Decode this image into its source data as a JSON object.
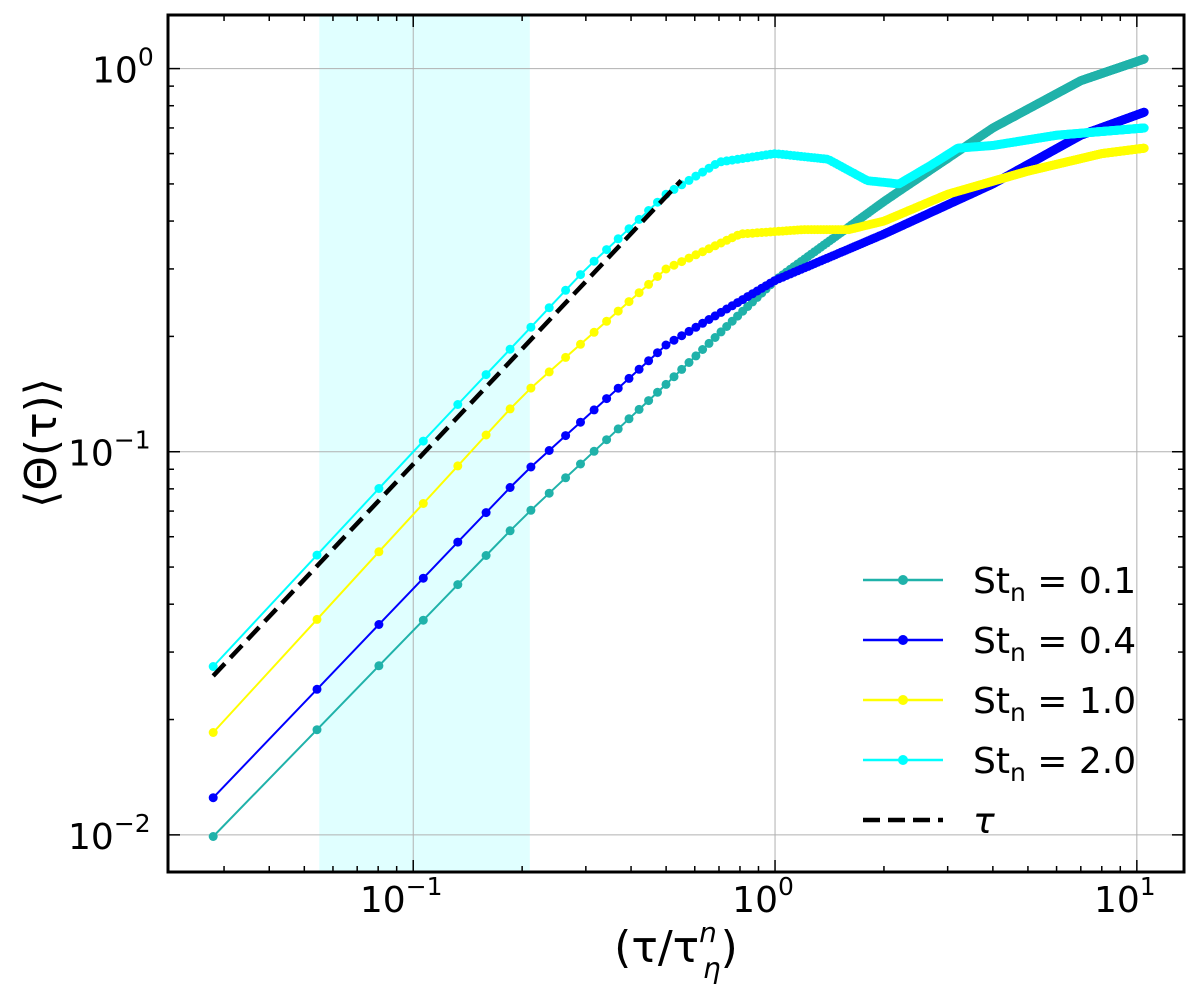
{
  "chart_data": {
    "type": "line",
    "xscale": "log",
    "yscale": "log",
    "xlim": [
      0.021,
      13.5
    ],
    "ylim": [
      0.008,
      1.38
    ],
    "grid": true,
    "xlabel": "(τ/τ",
    "xlabel_sup": "n",
    "xlabel_sub": "η",
    "xlabel_close": ")",
    "ylabel": "⟨Θ(τ)⟩",
    "x_major_ticks": [
      {
        "value": 0.1,
        "base": "10",
        "exp": "−1"
      },
      {
        "value": 1,
        "base": "10",
        "exp": "0"
      },
      {
        "value": 10,
        "base": "10",
        "exp": "1"
      }
    ],
    "y_major_ticks": [
      {
        "value": 0.01,
        "base": "10",
        "exp": "−2"
      },
      {
        "value": 0.1,
        "base": "10",
        "exp": "−1"
      },
      {
        "value": 1,
        "base": "10",
        "exp": "0"
      }
    ],
    "shaded_region": {
      "x": [
        0.055,
        0.21
      ],
      "color": "#E0FFFF"
    },
    "legend_position": "lower-right",
    "series": [
      {
        "name": "St",
        "sub": "n",
        "value_text": " = 0.1",
        "color": "#20B2AA",
        "points": [
          [
            0.028,
            0.0099
          ],
          [
            0.2,
            0.067
          ],
          [
            0.5,
            0.15
          ],
          [
            1,
            0.28
          ],
          [
            2,
            0.45
          ],
          [
            4,
            0.7
          ],
          [
            7,
            0.93
          ],
          [
            10.5,
            1.06
          ]
        ]
      },
      {
        "name": "St",
        "sub": "n",
        "value_text": " = 0.4",
        "color": "#0000FF",
        "points": [
          [
            0.028,
            0.0125
          ],
          [
            0.2,
            0.087
          ],
          [
            0.5,
            0.19
          ],
          [
            1,
            0.28
          ],
          [
            2,
            0.37
          ],
          [
            4,
            0.5
          ],
          [
            7,
            0.67
          ],
          [
            10.5,
            0.77
          ]
        ]
      },
      {
        "name": "St",
        "sub": "n",
        "value_text": " = 1.0",
        "color": "#FFFF00",
        "points": [
          [
            0.028,
            0.0185
          ],
          [
            0.2,
            0.14
          ],
          [
            0.5,
            0.3
          ],
          [
            0.8,
            0.37
          ],
          [
            1.2,
            0.38
          ],
          [
            1.6,
            0.38
          ],
          [
            2,
            0.4
          ],
          [
            3,
            0.47
          ],
          [
            5,
            0.54
          ],
          [
            8,
            0.6
          ],
          [
            10.5,
            0.62
          ]
        ]
      },
      {
        "name": "St",
        "sub": "n",
        "value_text": " = 2.0",
        "color": "#00FFFF",
        "points": [
          [
            0.028,
            0.0275
          ],
          [
            0.1,
            0.1
          ],
          [
            0.2,
            0.2
          ],
          [
            0.3,
            0.3
          ],
          [
            0.5,
            0.47
          ],
          [
            0.7,
            0.57
          ],
          [
            1,
            0.6
          ],
          [
            1.4,
            0.58
          ],
          [
            1.8,
            0.51
          ],
          [
            2.2,
            0.5
          ],
          [
            2.7,
            0.56
          ],
          [
            3.2,
            0.62
          ],
          [
            4,
            0.63
          ],
          [
            6,
            0.67
          ],
          [
            10.5,
            0.7
          ]
        ]
      },
      {
        "name": "τ",
        "sub": "",
        "value_text": "",
        "color": "#000000",
        "dashed": true,
        "points": [
          [
            0.028,
            0.026
          ],
          [
            0.55,
            0.51
          ]
        ]
      }
    ]
  }
}
